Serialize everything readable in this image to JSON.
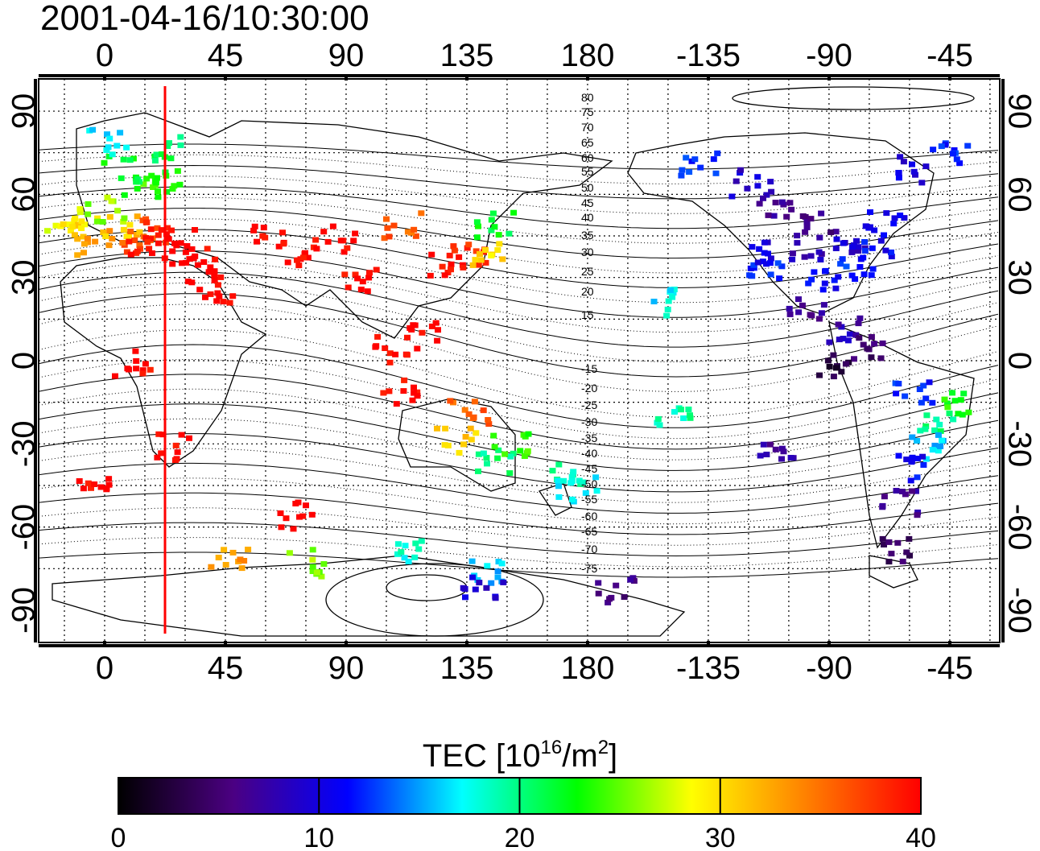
{
  "title": "2001-04-16/10:30:00",
  "map": {
    "lon_tick_labels": [
      "0",
      "45",
      "90",
      "135",
      "180",
      "-135",
      "-90",
      "-45"
    ],
    "lat_tick_labels": [
      "90",
      "60",
      "30",
      "0",
      "-30",
      "-60",
      "-90"
    ],
    "meridian_line_lon": 22.5,
    "contour_labels_north": [
      "80",
      "75",
      "70",
      "65",
      "60",
      "55",
      "50",
      "45",
      "40",
      "35",
      "30",
      "25",
      "20",
      "15"
    ],
    "contour_labels_south": [
      "-15",
      "-20",
      "-25",
      "-30",
      "-35",
      "-40",
      "-45",
      "-50",
      "-55",
      "-60",
      "-65",
      "-70",
      "-75"
    ],
    "grid_step_deg": 15
  },
  "colorbar": {
    "title_prefix": "TEC  [10",
    "title_exp1": "16",
    "title_mid": "/m",
    "title_exp2": "2",
    "title_suffix": "]",
    "min": 0,
    "max": 40,
    "tick_labels": [
      "0",
      "10",
      "20",
      "30",
      "40"
    ],
    "colors": [
      "#000000",
      "#4b0082",
      "#0000ff",
      "#00ffff",
      "#00ff00",
      "#ffff00",
      "#ff8000",
      "#ff0000"
    ]
  },
  "tec_clusters": [
    {
      "lon": -15,
      "lat": 52,
      "v": 28
    },
    {
      "lon": -10,
      "lat": 48,
      "v": 30
    },
    {
      "lon": -5,
      "lat": 44,
      "v": 33
    },
    {
      "lon": 0,
      "lat": 55,
      "v": 26
    },
    {
      "lon": 5,
      "lat": 50,
      "v": 31
    },
    {
      "lon": 10,
      "lat": 45,
      "v": 36
    },
    {
      "lon": 15,
      "lat": 42,
      "v": 39
    },
    {
      "lon": 20,
      "lat": 48,
      "v": 38
    },
    {
      "lon": 25,
      "lat": 44,
      "v": 40
    },
    {
      "lon": 30,
      "lat": 40,
      "v": 40
    },
    {
      "lon": 12,
      "lat": 62,
      "v": 24
    },
    {
      "lon": 20,
      "lat": 65,
      "v": 23
    },
    {
      "lon": 5,
      "lat": 70,
      "v": 22
    },
    {
      "lon": 0,
      "lat": 80,
      "v": 17
    },
    {
      "lon": 25,
      "lat": 78,
      "v": 21
    },
    {
      "lon": 35,
      "lat": 33,
      "v": 40
    },
    {
      "lon": 40,
      "lat": 25,
      "v": 40
    },
    {
      "lon": 60,
      "lat": 45,
      "v": 40
    },
    {
      "lon": 70,
      "lat": 40,
      "v": 40
    },
    {
      "lon": 85,
      "lat": 45,
      "v": 40
    },
    {
      "lon": 95,
      "lat": 30,
      "v": 40
    },
    {
      "lon": 110,
      "lat": 50,
      "v": 36
    },
    {
      "lon": 125,
      "lat": 35,
      "v": 40
    },
    {
      "lon": 135,
      "lat": 38,
      "v": 38
    },
    {
      "lon": 140,
      "lat": 40,
      "v": 30
    },
    {
      "lon": 145,
      "lat": 50,
      "v": 22
    },
    {
      "lon": 120,
      "lat": 10,
      "v": 40
    },
    {
      "lon": 105,
      "lat": 5,
      "v": 40
    },
    {
      "lon": 110,
      "lat": -10,
      "v": 40
    },
    {
      "lon": 135,
      "lat": -18,
      "v": 36
    },
    {
      "lon": 130,
      "lat": -28,
      "v": 31
    },
    {
      "lon": 145,
      "lat": -35,
      "v": 20
    },
    {
      "lon": 150,
      "lat": -30,
      "v": 24
    },
    {
      "lon": 170,
      "lat": -40,
      "v": 19
    },
    {
      "lon": 175,
      "lat": -45,
      "v": 17
    },
    {
      "lon": 10,
      "lat": 0,
      "v": 40
    },
    {
      "lon": 25,
      "lat": -30,
      "v": 40
    },
    {
      "lon": -5,
      "lat": -45,
      "v": 40
    },
    {
      "lon": 70,
      "lat": -55,
      "v": 40
    },
    {
      "lon": 45,
      "lat": -70,
      "v": 33
    },
    {
      "lon": 75,
      "lat": -72,
      "v": 26
    },
    {
      "lon": 110,
      "lat": -68,
      "v": 18
    },
    {
      "lon": 140,
      "lat": -75,
      "v": 16
    },
    {
      "lon": 140,
      "lat": -82,
      "v": 9
    },
    {
      "lon": -170,
      "lat": -82,
      "v": 6
    },
    {
      "lon": -140,
      "lat": 72,
      "v": 12
    },
    {
      "lon": -120,
      "lat": 65,
      "v": 9
    },
    {
      "lon": -110,
      "lat": 55,
      "v": 7
    },
    {
      "lon": -95,
      "lat": 50,
      "v": 6
    },
    {
      "lon": -100,
      "lat": 42,
      "v": 8
    },
    {
      "lon": -85,
      "lat": 40,
      "v": 9
    },
    {
      "lon": -75,
      "lat": 42,
      "v": 11
    },
    {
      "lon": -80,
      "lat": 35,
      "v": 12
    },
    {
      "lon": -95,
      "lat": 30,
      "v": 11
    },
    {
      "lon": -115,
      "lat": 35,
      "v": 12
    },
    {
      "lon": -120,
      "lat": 40,
      "v": 10
    },
    {
      "lon": -70,
      "lat": 50,
      "v": 10
    },
    {
      "lon": -155,
      "lat": 22,
      "v": 17
    },
    {
      "lon": -100,
      "lat": 20,
      "v": 7
    },
    {
      "lon": -85,
      "lat": 12,
      "v": 8
    },
    {
      "lon": -75,
      "lat": 5,
      "v": 5
    },
    {
      "lon": -90,
      "lat": 0,
      "v": 3
    },
    {
      "lon": -60,
      "lat": -10,
      "v": 12
    },
    {
      "lon": -50,
      "lat": -20,
      "v": 20
    },
    {
      "lon": -45,
      "lat": -15,
      "v": 23
    },
    {
      "lon": -55,
      "lat": -30,
      "v": 16
    },
    {
      "lon": -60,
      "lat": -38,
      "v": 11
    },
    {
      "lon": -65,
      "lat": -50,
      "v": 7
    },
    {
      "lon": -65,
      "lat": -68,
      "v": 4
    },
    {
      "lon": -110,
      "lat": -30,
      "v": 7
    },
    {
      "lon": -150,
      "lat": -20,
      "v": 19
    },
    {
      "lon": -60,
      "lat": 70,
      "v": 10
    },
    {
      "lon": -45,
      "lat": 75,
      "v": 12
    }
  ]
}
